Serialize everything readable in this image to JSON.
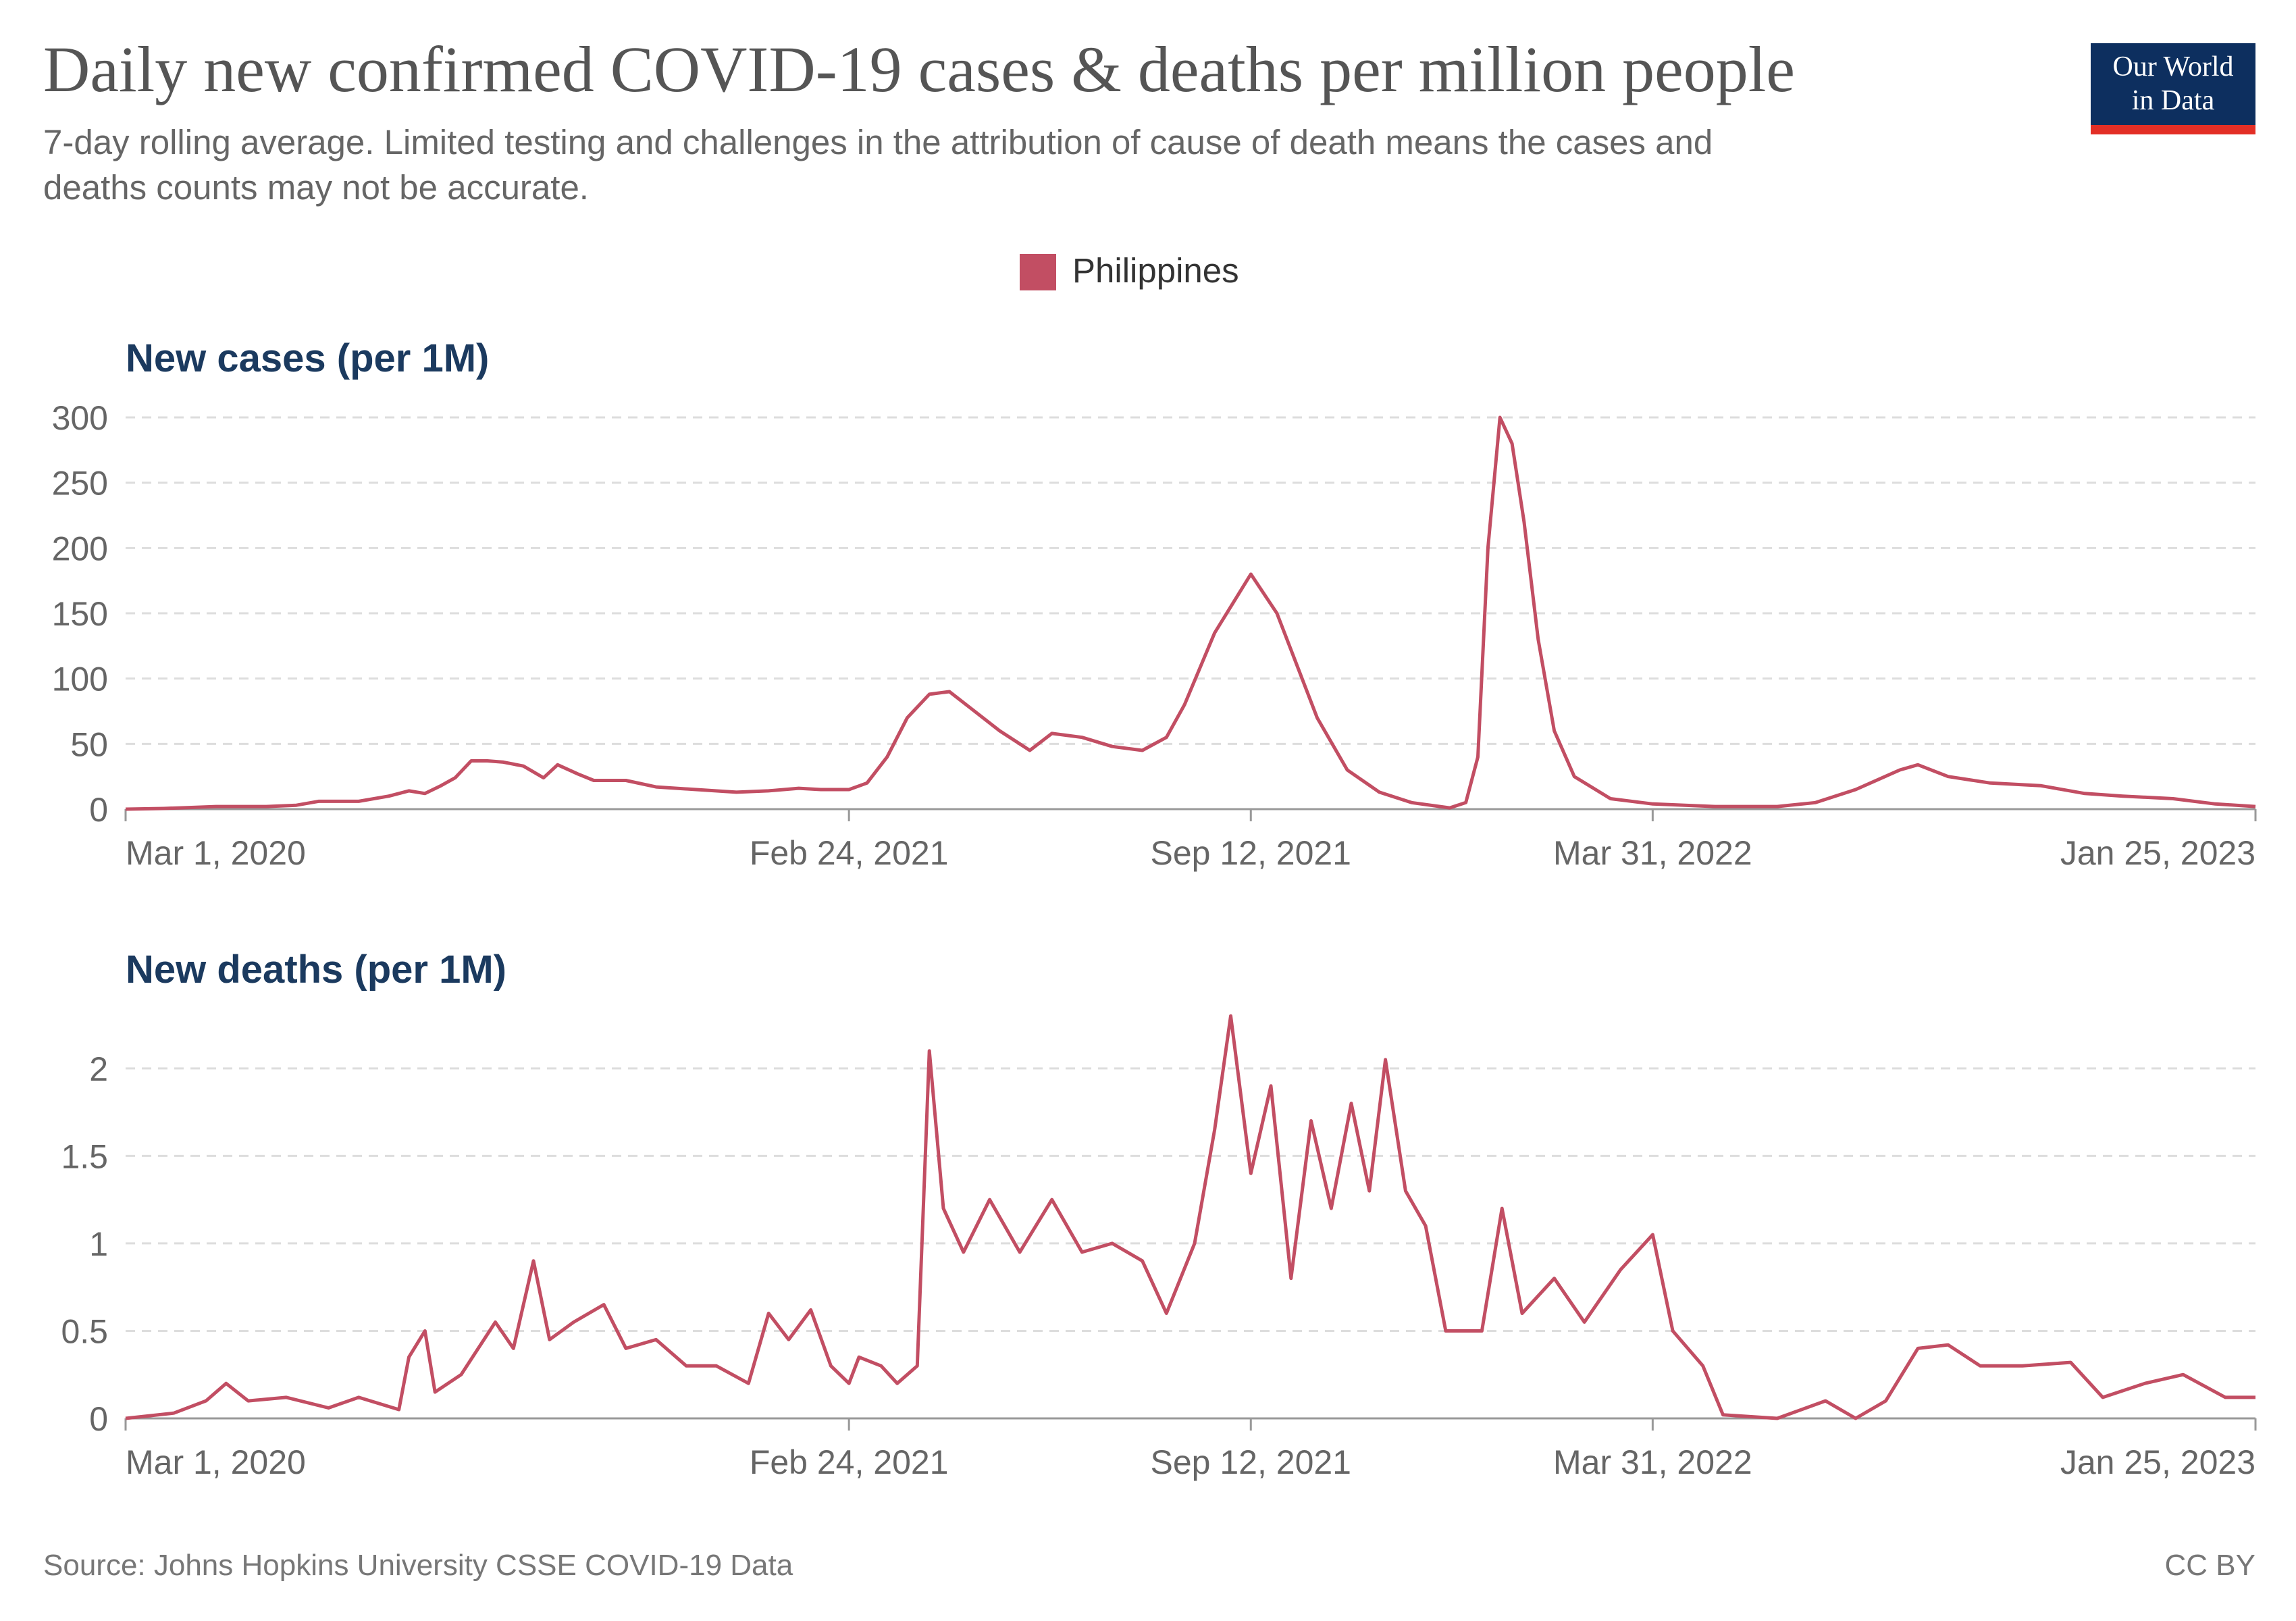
{
  "title": "Daily new confirmed COVID-19 cases & deaths per million people",
  "subtitle_lines": [
    "7-day rolling average. Limited testing and challenges in the attribution of cause of death means the cases and",
    "deaths counts may not be accurate."
  ],
  "logo": {
    "line1": "Our World",
    "line2": "in Data",
    "bg": "#0d2f5f",
    "accent": "#e32f26"
  },
  "legend": {
    "label": "Philippines",
    "color": "#c24e63",
    "position": "top-center"
  },
  "source": "Source: Johns Hopkins University CSSE COVID-19 Data",
  "license": "CC BY",
  "colors": {
    "series": "#c24e63",
    "title": "#555555",
    "panel_title": "#1b3a5f",
    "text": "#666666",
    "grid": "#dddddd"
  },
  "chart_data": [
    {
      "type": "line",
      "title": "New cases (per 1M)",
      "x_type": "date",
      "xlim": [
        "2020-03-01",
        "2023-01-25"
      ],
      "x_ticks": [
        "2020-03-01",
        "2021-02-24",
        "2021-09-12",
        "2022-03-31",
        "2023-01-25"
      ],
      "x_tick_labels": [
        "Mar 1, 2020",
        "Feb 24, 2021",
        "Sep 12, 2021",
        "Mar 31, 2022",
        "Jan 25, 2023"
      ],
      "ylim": [
        0,
        300
      ],
      "y_ticks": [
        0,
        50,
        100,
        150,
        200,
        250,
        300
      ],
      "y_tick_labels": [
        "0",
        "50",
        "100",
        "150",
        "200",
        "250",
        "300"
      ],
      "grid": true,
      "series": [
        {
          "name": "Philippines",
          "points": [
            [
              "2020-03-01",
              0
            ],
            [
              "2020-03-20",
              0.5
            ],
            [
              "2020-04-15",
              2
            ],
            [
              "2020-05-10",
              2
            ],
            [
              "2020-05-25",
              3
            ],
            [
              "2020-06-05",
              6
            ],
            [
              "2020-06-25",
              6
            ],
            [
              "2020-07-10",
              10
            ],
            [
              "2020-07-20",
              14
            ],
            [
              "2020-07-28",
              12
            ],
            [
              "2020-08-05",
              18
            ],
            [
              "2020-08-12",
              24
            ],
            [
              "2020-08-20",
              37
            ],
            [
              "2020-08-28",
              37
            ],
            [
              "2020-09-05",
              36
            ],
            [
              "2020-09-15",
              33
            ],
            [
              "2020-09-25",
              24
            ],
            [
              "2020-10-02",
              34
            ],
            [
              "2020-10-12",
              27
            ],
            [
              "2020-10-20",
              22
            ],
            [
              "2020-11-05",
              22
            ],
            [
              "2020-11-20",
              17
            ],
            [
              "2020-12-10",
              15
            ],
            [
              "2020-12-30",
              13
            ],
            [
              "2021-01-15",
              14
            ],
            [
              "2021-01-30",
              16
            ],
            [
              "2021-02-10",
              15
            ],
            [
              "2021-02-24",
              15
            ],
            [
              "2021-03-05",
              20
            ],
            [
              "2021-03-15",
              40
            ],
            [
              "2021-03-25",
              70
            ],
            [
              "2021-04-05",
              88
            ],
            [
              "2021-04-15",
              90
            ],
            [
              "2021-04-25",
              78
            ],
            [
              "2021-05-10",
              60
            ],
            [
              "2021-05-25",
              45
            ],
            [
              "2021-06-05",
              58
            ],
            [
              "2021-06-20",
              55
            ],
            [
              "2021-07-05",
              48
            ],
            [
              "2021-07-20",
              45
            ],
            [
              "2021-08-01",
              55
            ],
            [
              "2021-08-10",
              80
            ],
            [
              "2021-08-25",
              135
            ],
            [
              "2021-09-12",
              180
            ],
            [
              "2021-09-25",
              150
            ],
            [
              "2021-10-05",
              110
            ],
            [
              "2021-10-15",
              70
            ],
            [
              "2021-10-30",
              30
            ],
            [
              "2021-11-15",
              13
            ],
            [
              "2021-12-01",
              5
            ],
            [
              "2021-12-20",
              1
            ],
            [
              "2021-12-28",
              5
            ],
            [
              "2022-01-03",
              40
            ],
            [
              "2022-01-08",
              200
            ],
            [
              "2022-01-14",
              300
            ],
            [
              "2022-01-20",
              280
            ],
            [
              "2022-01-26",
              220
            ],
            [
              "2022-02-02",
              130
            ],
            [
              "2022-02-10",
              60
            ],
            [
              "2022-02-20",
              25
            ],
            [
              "2022-03-10",
              8
            ],
            [
              "2022-03-31",
              4
            ],
            [
              "2022-05-01",
              2
            ],
            [
              "2022-06-01",
              2
            ],
            [
              "2022-06-20",
              5
            ],
            [
              "2022-07-10",
              15
            ],
            [
              "2022-08-01",
              30
            ],
            [
              "2022-08-10",
              34
            ],
            [
              "2022-08-25",
              25
            ],
            [
              "2022-09-15",
              20
            ],
            [
              "2022-10-10",
              18
            ],
            [
              "2022-11-01",
              12
            ],
            [
              "2022-11-20",
              10
            ],
            [
              "2022-12-15",
              8
            ],
            [
              "2023-01-05",
              4
            ],
            [
              "2023-01-25",
              2
            ]
          ]
        }
      ]
    },
    {
      "type": "line",
      "title": "New deaths (per 1M)",
      "x_type": "date",
      "xlim": [
        "2020-03-01",
        "2023-01-25"
      ],
      "x_ticks": [
        "2020-03-01",
        "2021-02-24",
        "2021-09-12",
        "2022-03-31",
        "2023-01-25"
      ],
      "x_tick_labels": [
        "Mar 1, 2020",
        "Feb 24, 2021",
        "Sep 12, 2021",
        "Mar 31, 2022",
        "Jan 25, 2023"
      ],
      "ylim": [
        0,
        2.2
      ],
      "y_ticks": [
        0,
        0.5,
        1,
        1.5,
        2
      ],
      "y_tick_labels": [
        "0",
        "0.5",
        "1",
        "1.5",
        "2"
      ],
      "grid": true,
      "series": [
        {
          "name": "Philippines",
          "points": [
            [
              "2020-03-01",
              0
            ],
            [
              "2020-03-25",
              0.03
            ],
            [
              "2020-04-10",
              0.1
            ],
            [
              "2020-04-20",
              0.2
            ],
            [
              "2020-05-01",
              0.1
            ],
            [
              "2020-05-20",
              0.12
            ],
            [
              "2020-06-10",
              0.06
            ],
            [
              "2020-06-25",
              0.12
            ],
            [
              "2020-07-15",
              0.05
            ],
            [
              "2020-07-20",
              0.35
            ],
            [
              "2020-07-28",
              0.5
            ],
            [
              "2020-08-02",
              0.15
            ],
            [
              "2020-08-15",
              0.25
            ],
            [
              "2020-09-01",
              0.55
            ],
            [
              "2020-09-10",
              0.4
            ],
            [
              "2020-09-20",
              0.9
            ],
            [
              "2020-09-28",
              0.45
            ],
            [
              "2020-10-10",
              0.55
            ],
            [
              "2020-10-25",
              0.65
            ],
            [
              "2020-11-05",
              0.4
            ],
            [
              "2020-11-20",
              0.45
            ],
            [
              "2020-12-05",
              0.3
            ],
            [
              "2020-12-20",
              0.3
            ],
            [
              "2021-01-05",
              0.2
            ],
            [
              "2021-01-15",
              0.6
            ],
            [
              "2021-01-25",
              0.45
            ],
            [
              "2021-02-05",
              0.62
            ],
            [
              "2021-02-15",
              0.3
            ],
            [
              "2021-02-24",
              0.2
            ],
            [
              "2021-03-01",
              0.35
            ],
            [
              "2021-03-12",
              0.3
            ],
            [
              "2021-03-20",
              0.2
            ],
            [
              "2021-03-30",
              0.3
            ],
            [
              "2021-04-05",
              2.1
            ],
            [
              "2021-04-12",
              1.2
            ],
            [
              "2021-04-22",
              0.95
            ],
            [
              "2021-05-05",
              1.25
            ],
            [
              "2021-05-20",
              0.95
            ],
            [
              "2021-06-05",
              1.25
            ],
            [
              "2021-06-20",
              0.95
            ],
            [
              "2021-07-05",
              1.0
            ],
            [
              "2021-07-20",
              0.9
            ],
            [
              "2021-08-01",
              0.6
            ],
            [
              "2021-08-15",
              1.0
            ],
            [
              "2021-08-25",
              1.65
            ],
            [
              "2021-09-02",
              2.3
            ],
            [
              "2021-09-12",
              1.4
            ],
            [
              "2021-09-22",
              1.9
            ],
            [
              "2021-10-02",
              0.8
            ],
            [
              "2021-10-12",
              1.7
            ],
            [
              "2021-10-22",
              1.2
            ],
            [
              "2021-11-01",
              1.8
            ],
            [
              "2021-11-10",
              1.3
            ],
            [
              "2021-11-18",
              2.05
            ],
            [
              "2021-11-28",
              1.3
            ],
            [
              "2021-12-08",
              1.1
            ],
            [
              "2021-12-18",
              0.5
            ],
            [
              "2022-01-05",
              0.5
            ],
            [
              "2022-01-15",
              1.2
            ],
            [
              "2022-01-25",
              0.6
            ],
            [
              "2022-02-10",
              0.8
            ],
            [
              "2022-02-25",
              0.55
            ],
            [
              "2022-03-15",
              0.85
            ],
            [
              "2022-03-31",
              1.05
            ],
            [
              "2022-04-10",
              0.5
            ],
            [
              "2022-04-25",
              0.3
            ],
            [
              "2022-05-05",
              0.02
            ],
            [
              "2022-06-01",
              0.0
            ],
            [
              "2022-06-25",
              0.1
            ],
            [
              "2022-07-10",
              0.0
            ],
            [
              "2022-07-25",
              0.1
            ],
            [
              "2022-08-10",
              0.4
            ],
            [
              "2022-08-25",
              0.42
            ],
            [
              "2022-09-10",
              0.3
            ],
            [
              "2022-10-01",
              0.3
            ],
            [
              "2022-10-25",
              0.32
            ],
            [
              "2022-11-10",
              0.12
            ],
            [
              "2022-12-01",
              0.2
            ],
            [
              "2022-12-20",
              0.25
            ],
            [
              "2023-01-10",
              0.12
            ],
            [
              "2023-01-25",
              0.12
            ]
          ]
        }
      ]
    }
  ]
}
